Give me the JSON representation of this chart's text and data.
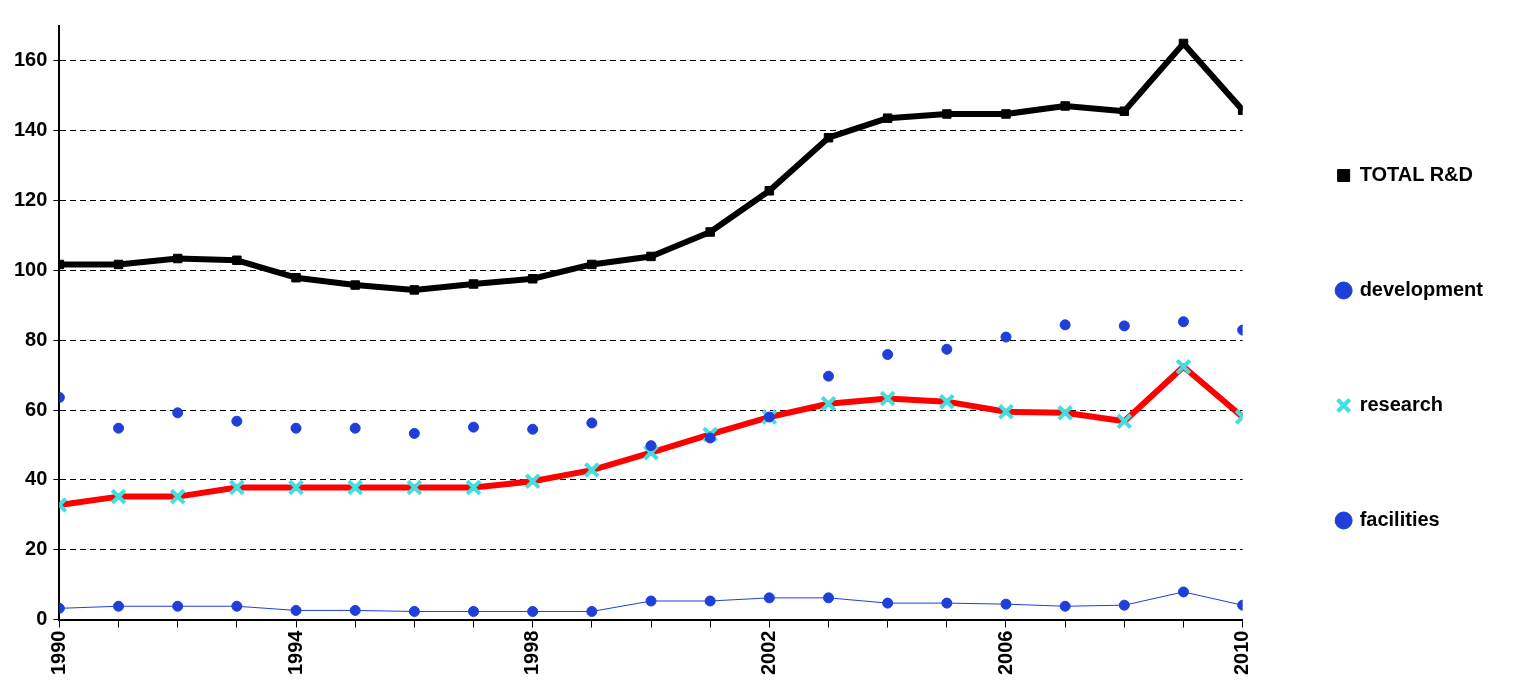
{
  "chart_data": {
    "type": "line",
    "x": [
      1990,
      1991,
      1992,
      1993,
      1994,
      1995,
      1996,
      1997,
      1998,
      1999,
      2000,
      2001,
      2002,
      2003,
      2004,
      2005,
      2006,
      2007,
      2008,
      2009,
      2010
    ],
    "xlim": [
      1990,
      2010
    ],
    "xticks": [
      1990,
      {
        "value": 1991,
        "label": null
      },
      {
        "value": 1992,
        "label": null
      },
      {
        "value": 1993,
        "label": null
      },
      1994,
      {
        "value": 1995,
        "label": null
      },
      {
        "value": 1996,
        "label": null
      },
      {
        "value": 1997,
        "label": null
      },
      1998,
      {
        "value": 1999,
        "label": null
      },
      {
        "value": 2000,
        "label": null
      },
      {
        "value": 2001,
        "label": null
      },
      2002,
      {
        "value": 2003,
        "label": null
      },
      {
        "value": 2004,
        "label": null
      },
      {
        "value": 2005,
        "label": null
      },
      2006,
      {
        "value": 2007,
        "label": null
      },
      {
        "value": 2008,
        "label": null
      },
      {
        "value": 2009,
        "label": null
      },
      2010
    ],
    "ylim": [
      0,
      170
    ],
    "yticks": [
      0,
      20,
      40,
      60,
      80,
      100,
      120,
      140,
      160
    ],
    "grid": "y",
    "legend": "right",
    "series": [
      {
        "name": "TOTAL R&D",
        "color": "#000000",
        "marker": "square",
        "values": [
          101.7,
          101.7,
          103.4,
          102.9,
          97.9,
          95.8,
          94.4,
          96.1,
          97.6,
          101.7,
          104,
          111,
          122.8,
          138,
          143.6,
          144.8,
          144.8,
          147.1,
          145.6,
          165,
          145.9
        ]
      },
      {
        "name": "development",
        "type": "scatter",
        "color": "#1f3fd8",
        "marker": "circle",
        "values": [
          63.6,
          54.8,
          59.2,
          56.8,
          54.8,
          54.8,
          53.3,
          55.1,
          54.5,
          56.3,
          49.8,
          52,
          58,
          69.7,
          75.9,
          77.4,
          80.9,
          84.4,
          84.1,
          85.3,
          82.9
        ]
      },
      {
        "name": "research",
        "color": "#ff0000",
        "marker": "cross",
        "colors": [
          "#40e0e0",
          "#40e0e0",
          "#40e0e0",
          "#40e0e0",
          "#40e0e0",
          "#40e0e0",
          "#40e0e0",
          "#40e0e0",
          "#40e0e0",
          "#40e0e0",
          "#40e0e0",
          "#40e0e0",
          "#40e0e0",
          "#40e0e0",
          "#40e0e0",
          "#40e0e0",
          "#40e0e0",
          "#40e0e0",
          "#40e0e0",
          "#40e0e0",
          "#40e0e0"
        ],
        "values": [
          32.8,
          35.2,
          35.2,
          37.8,
          37.8,
          37.8,
          37.8,
          37.8,
          39.6,
          42.8,
          47.8,
          53,
          58,
          61.8,
          63.3,
          62.4,
          59.5,
          59.2,
          56.8,
          72.4,
          58
        ]
      },
      {
        "name": "facilities",
        "color": "#1f3fd8",
        "marker": "circle",
        "values": [
          3.2,
          3.8,
          3.8,
          3.8,
          2.6,
          2.6,
          2.3,
          2.3,
          2.3,
          2.3,
          5.3,
          5.3,
          6.2,
          6.2,
          4.7,
          4.7,
          4.4,
          3.8,
          4.1,
          7.9,
          4.1
        ]
      }
    ]
  }
}
